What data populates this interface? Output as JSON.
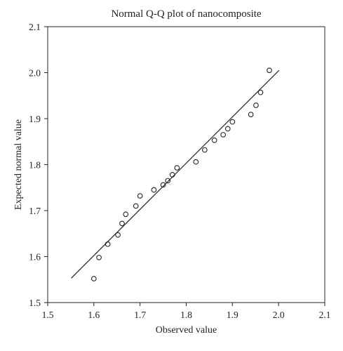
{
  "chart_data": {
    "type": "scatter",
    "title": "Normal Q-Q plot of nanocomposite",
    "xlabel": "Observed value",
    "ylabel": "Expected normal value",
    "xlim": [
      1.5,
      2.1
    ],
    "ylim": [
      1.5,
      2.1
    ],
    "xticks": [
      "1.5",
      "1.6",
      "1.7",
      "1.8",
      "1.9",
      "2.0",
      "2.1"
    ],
    "yticks": [
      "1.5",
      "1.6",
      "1.7",
      "1.8",
      "1.9",
      "2.0",
      "2.1"
    ],
    "grid": false,
    "legend": "none",
    "series": [
      {
        "marker": "open-circle",
        "points": [
          {
            "x": 1.6,
            "y": 1.552
          },
          {
            "x": 1.611,
            "y": 1.598
          },
          {
            "x": 1.63,
            "y": 1.627
          },
          {
            "x": 1.652,
            "y": 1.647
          },
          {
            "x": 1.661,
            "y": 1.672
          },
          {
            "x": 1.669,
            "y": 1.692
          },
          {
            "x": 1.691,
            "y": 1.71
          },
          {
            "x": 1.7,
            "y": 1.732
          },
          {
            "x": 1.73,
            "y": 1.745
          },
          {
            "x": 1.75,
            "y": 1.756
          },
          {
            "x": 1.76,
            "y": 1.765
          },
          {
            "x": 1.77,
            "y": 1.778
          },
          {
            "x": 1.78,
            "y": 1.793
          },
          {
            "x": 1.821,
            "y": 1.806
          },
          {
            "x": 1.84,
            "y": 1.832
          },
          {
            "x": 1.861,
            "y": 1.853
          },
          {
            "x": 1.88,
            "y": 1.865
          },
          {
            "x": 1.89,
            "y": 1.878
          },
          {
            "x": 1.9,
            "y": 1.893
          },
          {
            "x": 1.94,
            "y": 1.909
          },
          {
            "x": 1.951,
            "y": 1.929
          },
          {
            "x": 1.961,
            "y": 1.957
          },
          {
            "x": 1.98,
            "y": 2.005
          }
        ]
      }
    ],
    "reference_line": {
      "x": [
        1.551,
        2.001
      ],
      "y": [
        1.553,
        2.005
      ]
    },
    "colors": {
      "marker": "#222222",
      "line": "#222222",
      "axis": "#222222"
    }
  }
}
